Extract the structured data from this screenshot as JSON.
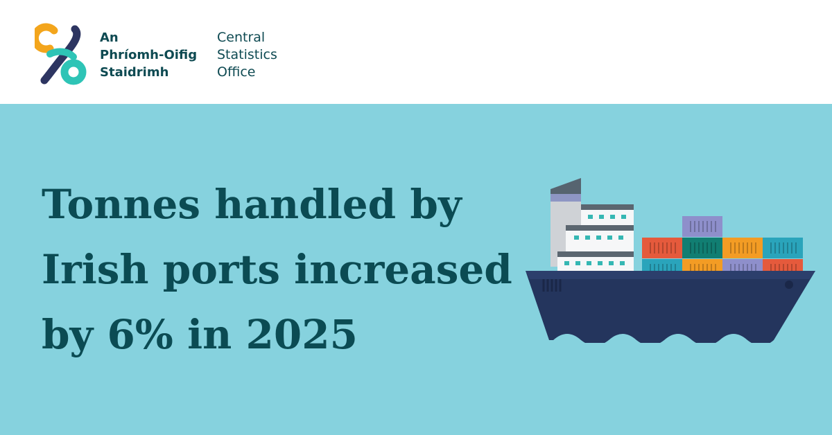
{
  "header": {
    "irish_name_lines": [
      "An",
      "Phríomh-Oifig",
      "Staidrimh"
    ],
    "english_name_lines": [
      "Central",
      "Statistics",
      "Office"
    ]
  },
  "headline": {
    "lines": [
      "Tonnes handled by",
      "Irish ports increased",
      "by 6% in 2025"
    ]
  },
  "illustration": {
    "icon": "container-ship-icon"
  },
  "colors": {
    "banner_background": "#86d2de",
    "headline_text": "#0b4b53",
    "brand_text": "#0e4a52",
    "logo_orange": "#f3a51c",
    "logo_teal": "#2ec4b6",
    "logo_navy": "#2d3561",
    "hull": "#24355d"
  }
}
